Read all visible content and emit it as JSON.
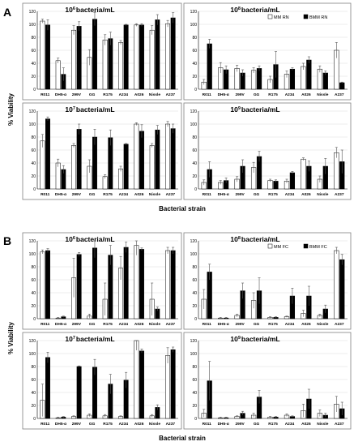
{
  "figure": {
    "y_axis_label": "% Viability",
    "x_axis_label": "Bacterial strain"
  },
  "colors": {
    "mm": "#ffffff",
    "bmm": "#000000",
    "axis": "#000000",
    "grid": "#d9d9d9",
    "panel_border": "#808080"
  },
  "chart_data": [
    {
      "panel": "A",
      "title": "10^6 bacteria/mL",
      "type": "bar",
      "categories": [
        "R011",
        "DH5-α",
        "299V",
        "GG",
        "R175",
        "A234",
        "A026",
        "Nissle",
        "A237"
      ],
      "series": [],
      "mm_values": [
        105,
        44,
        91,
        49,
        76,
        72,
        99,
        91,
        101
      ],
      "mm_errors": [
        3,
        4,
        7,
        12,
        8,
        3,
        2,
        7,
        5
      ],
      "bmm_values": [
        99,
        23,
        97,
        108,
        78,
        99,
        99,
        107,
        110
      ],
      "bmm_errors": [
        8,
        10,
        7,
        10,
        10,
        1,
        2,
        8,
        8
      ],
      "ylim": [
        0,
        120
      ],
      "yticks": [
        0,
        20,
        40,
        60,
        80,
        100,
        120
      ]
    },
    {
      "panel": "A",
      "title": "10^8 bacteria/mL",
      "type": "bar",
      "categories": [
        "R011",
        "DH5-α",
        "299V",
        "GG",
        "R175",
        "A234",
        "A026",
        "Nissle",
        "A237"
      ],
      "series": [
        "MM RN",
        "BMM RN"
      ],
      "mm_values": [
        11,
        33,
        32,
        29,
        15,
        23,
        35,
        31,
        60
      ],
      "mm_errors": [
        4,
        8,
        5,
        4,
        5,
        5,
        5,
        5,
        12
      ],
      "bmm_values": [
        70,
        30,
        25,
        32,
        38,
        31,
        45,
        25,
        10
      ],
      "bmm_errors": [
        7,
        6,
        5,
        4,
        20,
        2,
        5,
        3,
        1
      ],
      "ylim": [
        0,
        120
      ],
      "yticks": [
        0,
        20,
        40,
        60,
        80,
        100,
        120
      ]
    },
    {
      "panel": "A",
      "title": "10^7 bacteria/mL",
      "type": "bar",
      "categories": [
        "R011",
        "DH5-α",
        "299V",
        "GG",
        "R175",
        "A234",
        "A026",
        "Nissle",
        "A237"
      ],
      "series": [],
      "mm_values": [
        74,
        40,
        67,
        35,
        19,
        31,
        100,
        67,
        100
      ],
      "mm_errors": [
        10,
        6,
        3,
        10,
        3,
        4,
        2,
        3,
        4
      ],
      "bmm_values": [
        108,
        30,
        92,
        80,
        79,
        69,
        89,
        91,
        93
      ],
      "bmm_errors": [
        3,
        6,
        8,
        12,
        12,
        1,
        10,
        7,
        7
      ],
      "ylim": [
        0,
        120
      ],
      "yticks": [
        0,
        20,
        40,
        60,
        80,
        100,
        120
      ]
    },
    {
      "panel": "A",
      "title": "10^9 bacteria/mL",
      "type": "bar",
      "categories": [
        "R011",
        "DH5-α",
        "299V",
        "GG",
        "R175",
        "A234",
        "A026",
        "Nissle",
        "A237"
      ],
      "series": [],
      "mm_values": [
        10,
        10,
        15,
        33,
        13,
        12,
        46,
        15,
        56
      ],
      "mm_errors": [
        4,
        3,
        4,
        8,
        2,
        3,
        2,
        5,
        8
      ],
      "bmm_values": [
        30,
        13,
        35,
        50,
        12,
        25,
        35,
        35,
        42
      ],
      "bmm_errors": [
        12,
        4,
        10,
        8,
        2,
        2,
        8,
        12,
        18
      ],
      "ylim": [
        0,
        120
      ],
      "yticks": [
        0,
        20,
        40,
        60,
        80,
        100,
        120
      ]
    },
    {
      "panel": "B",
      "title": "10^6 bacteria/mL",
      "type": "bar",
      "categories": [
        "R011",
        "DH5-α",
        "299V",
        "GG",
        "R175",
        "A234",
        "A026",
        "Nissle",
        "A237"
      ],
      "series": [],
      "mm_values": [
        103,
        1,
        63,
        4,
        30,
        78,
        113,
        30,
        105
      ],
      "mm_errors": [
        3,
        1,
        30,
        3,
        25,
        18,
        15,
        25,
        5
      ],
      "bmm_values": [
        105,
        3,
        99,
        109,
        98,
        110,
        107,
        15,
        105
      ],
      "bmm_errors": [
        3,
        1,
        3,
        15,
        15,
        8,
        2,
        3,
        5
      ],
      "ylim": [
        0,
        120
      ],
      "yticks": [
        0,
        20,
        40,
        60,
        80,
        100,
        120
      ]
    },
    {
      "panel": "B",
      "title": "10^8 bacteria/mL",
      "type": "bar",
      "categories": [
        "R011",
        "DH5-α",
        "299V",
        "GG",
        "R175",
        "A234",
        "A026",
        "Nissle",
        "A237"
      ],
      "series": [
        "MM FC",
        "BMM FC"
      ],
      "mm_values": [
        30,
        1,
        5,
        28,
        2,
        3,
        8,
        5,
        105
      ],
      "mm_errors": [
        15,
        1,
        2,
        12,
        1,
        1,
        5,
        2,
        5
      ],
      "bmm_values": [
        72,
        1,
        43,
        43,
        2,
        35,
        35,
        15,
        91
      ],
      "bmm_errors": [
        12,
        1,
        12,
        20,
        1,
        12,
        15,
        6,
        8
      ],
      "ylim": [
        0,
        120
      ],
      "yticks": [
        0,
        20,
        40,
        60,
        80,
        100,
        120
      ]
    },
    {
      "panel": "B",
      "title": "10^7 bacteria/mL",
      "type": "bar",
      "categories": [
        "R011",
        "DH5-α",
        "299V",
        "GG",
        "R175",
        "A234",
        "A026",
        "Nissle",
        "A237"
      ],
      "series": [],
      "mm_values": [
        28,
        1,
        3,
        5,
        4,
        3,
        120,
        4,
        97
      ],
      "mm_errors": [
        25,
        1,
        1,
        2,
        2,
        1,
        15,
        2,
        12
      ],
      "bmm_values": [
        94,
        2,
        80,
        79,
        53,
        59,
        104,
        17,
        106
      ],
      "bmm_errors": [
        8,
        1,
        1,
        12,
        15,
        12,
        3,
        4,
        4
      ],
      "ylim": [
        0,
        120
      ],
      "yticks": [
        0,
        20,
        40,
        60,
        80,
        100,
        120
      ]
    },
    {
      "panel": "B",
      "title": "10^9 bacteria/mL",
      "type": "bar",
      "categories": [
        "R011",
        "DH5-α",
        "299V",
        "GG",
        "R175",
        "A234",
        "A026",
        "Nissle",
        "A237"
      ],
      "series": [],
      "mm_values": [
        8,
        1,
        3,
        5,
        2,
        5,
        12,
        8,
        22
      ],
      "mm_errors": [
        6,
        1,
        1,
        3,
        1,
        2,
        10,
        5,
        12
      ],
      "bmm_values": [
        58,
        1,
        8,
        33,
        2,
        3,
        30,
        5,
        15
      ],
      "bmm_errors": [
        30,
        1,
        3,
        10,
        1,
        1,
        15,
        3,
        10
      ],
      "ylim": [
        0,
        120
      ],
      "yticks": [
        0,
        20,
        40,
        60,
        80,
        100,
        120
      ]
    }
  ],
  "panel_letters": [
    "A",
    "B"
  ]
}
